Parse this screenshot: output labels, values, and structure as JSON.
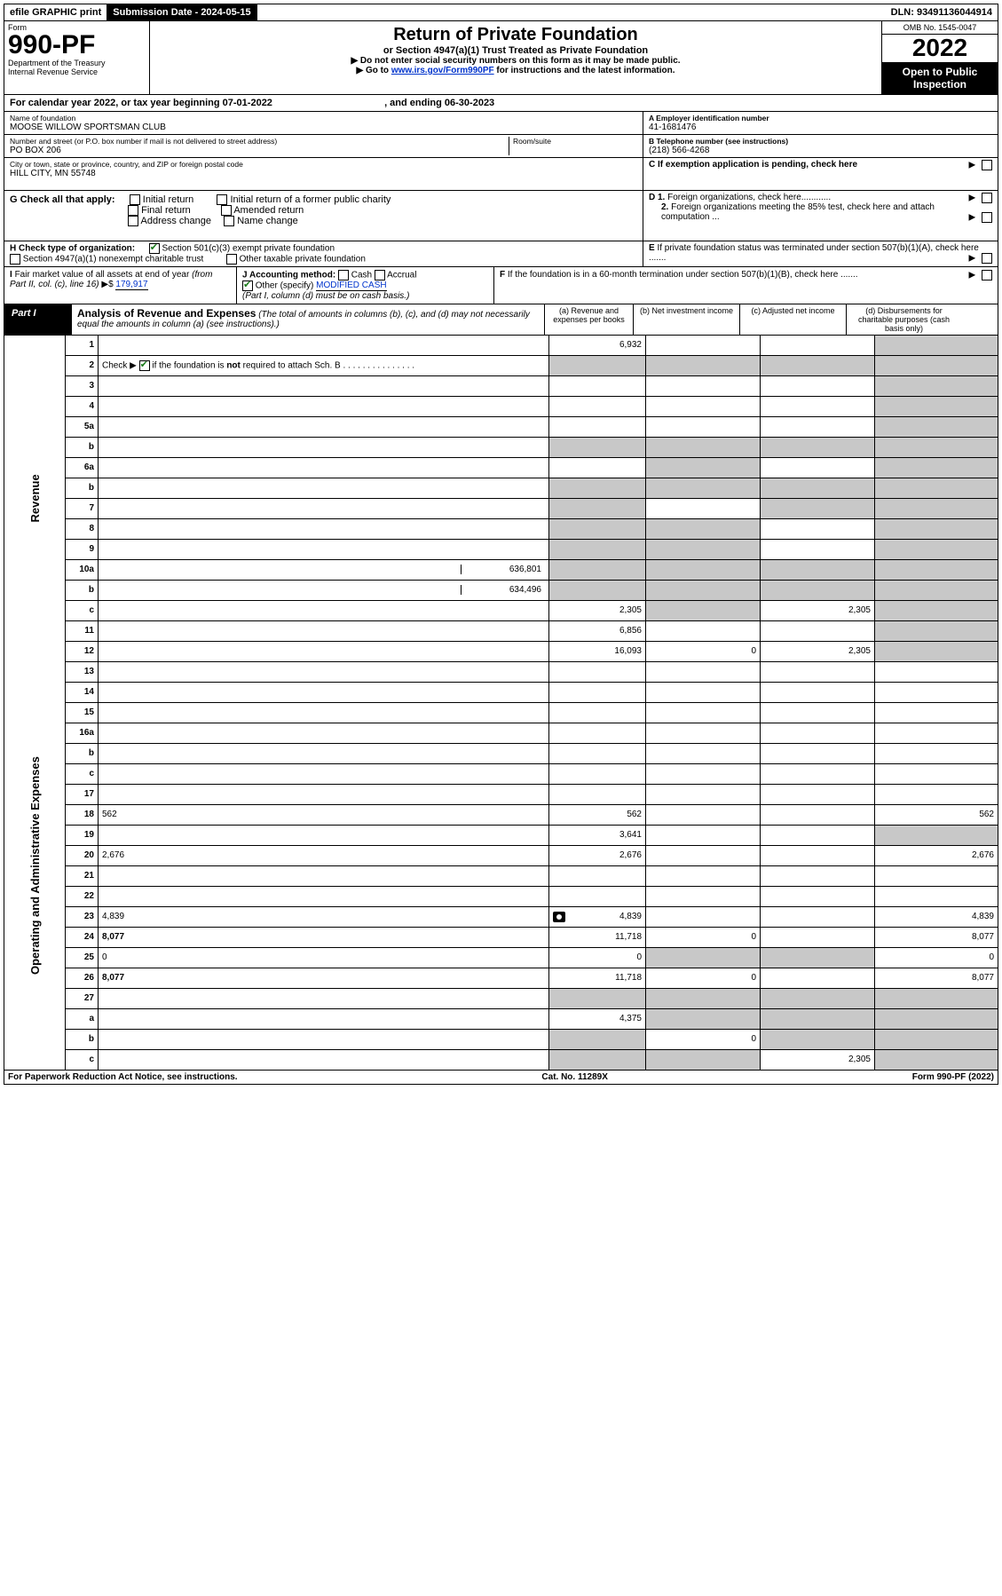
{
  "topbar": {
    "efile": "efile GRAPHIC print",
    "submission_label": "Submission Date - 2024-05-15",
    "dln": "DLN: 93491136044914"
  },
  "header": {
    "form_word": "Form",
    "form_number": "990-PF",
    "dept": "Department of the Treasury",
    "irs": "Internal Revenue Service",
    "title": "Return of Private Foundation",
    "subtitle": "or Section 4947(a)(1) Trust Treated as Private Foundation",
    "instr1": "▶ Do not enter social security numbers on this form as it may be made public.",
    "instr2_pre": "▶ Go to ",
    "instr2_link": "www.irs.gov/Form990PF",
    "instr2_post": " for instructions and the latest information.",
    "omb": "OMB No. 1545-0047",
    "year": "2022",
    "open": "Open to Public Inspection"
  },
  "cal_year": {
    "pre": "For calendar year 2022, or tax year beginning ",
    "begin": "07-01-2022",
    "mid": " , and ending ",
    "end": "06-30-2023"
  },
  "info": {
    "name_label": "Name of foundation",
    "name": "MOOSE WILLOW SPORTSMAN CLUB",
    "addr_label": "Number and street (or P.O. box number if mail is not delivered to street address)",
    "addr": "PO BOX 206",
    "room_label": "Room/suite",
    "room": "",
    "city_label": "City or town, state or province, country, and ZIP or foreign postal code",
    "city": "HILL CITY, MN  55748",
    "a_label": "A Employer identification number",
    "a_val": "41-1681476",
    "b_label": "B Telephone number (see instructions)",
    "b_val": "(218) 566-4268",
    "c_label": "C If exemption application is pending, check here",
    "d1": "D 1. Foreign organizations, check here............",
    "d2": "2. Foreign organizations meeting the 85% test, check here and attach computation ...",
    "e": "E  If private foundation status was terminated under section 507(b)(1)(A), check here .......",
    "f": "F  If the foundation is in a 60-month termination under section 507(b)(1)(B), check here .......",
    "g_label": "G Check all that apply:",
    "g_opts": [
      "Initial return",
      "Final return",
      "Address change",
      "Initial return of a former public charity",
      "Amended return",
      "Name change"
    ],
    "h_label": "H Check type of organization:",
    "h_opt1": "Section 501(c)(3) exempt private foundation",
    "h_opt2": "Section 4947(a)(1) nonexempt charitable trust",
    "h_opt3": "Other taxable private foundation",
    "i_label": "I Fair market value of all assets at end of year (from Part II, col. (c), line 16)",
    "i_val": "179,917",
    "j_label": "J Accounting method:",
    "j_cash": "Cash",
    "j_accrual": "Accrual",
    "j_other_label": "Other (specify)",
    "j_other_val": "MODIFIED CASH",
    "j_note": "(Part I, column (d) must be on cash basis.)"
  },
  "part1": {
    "label": "Part I",
    "title": "Analysis of Revenue and Expenses",
    "subtitle": " (The total of amounts in columns (b), (c), and (d) may not necessarily equal the amounts in column (a) (see instructions).)",
    "col_a": "(a) Revenue and expenses per books",
    "col_b": "(b) Net investment income",
    "col_c": "(c) Adjusted net income",
    "col_d": "(d) Disbursements for charitable purposes (cash basis only)"
  },
  "sides": {
    "revenue": "Revenue",
    "expenses": "Operating and Administrative Expenses"
  },
  "rows": [
    {
      "n": "1",
      "d": "",
      "a": "6,932",
      "b": "",
      "c": "",
      "d_grey": true
    },
    {
      "n": "2",
      "d": "",
      "a": "",
      "b": "",
      "c": "",
      "a_grey": true,
      "b_grey": true,
      "c_grey": true,
      "d_grey": true,
      "check": true
    },
    {
      "n": "3",
      "d": "",
      "a": "",
      "b": "",
      "c": "",
      "d_grey": true
    },
    {
      "n": "4",
      "d": "",
      "a": "",
      "b": "",
      "c": "",
      "d_grey": true
    },
    {
      "n": "5a",
      "d": "",
      "a": "",
      "b": "",
      "c": "",
      "d_grey": true
    },
    {
      "n": "b",
      "d": "",
      "sub": true,
      "subval": "",
      "a": "",
      "b": "",
      "c": "",
      "a_grey": true,
      "b_grey": true,
      "c_grey": true,
      "d_grey": true
    },
    {
      "n": "6a",
      "d": "",
      "a": "",
      "b": "",
      "c": "",
      "b_grey": true,
      "d_grey": true
    },
    {
      "n": "b",
      "d": "",
      "sub": true,
      "subval": "",
      "a": "",
      "b": "",
      "c": "",
      "a_grey": true,
      "b_grey": true,
      "c_grey": true,
      "d_grey": true
    },
    {
      "n": "7",
      "d": "",
      "a": "",
      "b": "",
      "c": "",
      "a_grey": true,
      "c_grey": true,
      "d_grey": true
    },
    {
      "n": "8",
      "d": "",
      "a": "",
      "b": "",
      "c": "",
      "a_grey": true,
      "b_grey": true,
      "d_grey": true
    },
    {
      "n": "9",
      "d": "",
      "a": "",
      "b": "",
      "c": "",
      "a_grey": true,
      "b_grey": true,
      "d_grey": true
    },
    {
      "n": "10a",
      "d": "",
      "sub": true,
      "subval": "636,801",
      "a": "",
      "b": "",
      "c": "",
      "a_grey": true,
      "b_grey": true,
      "c_grey": true,
      "d_grey": true
    },
    {
      "n": "b",
      "d": "",
      "sub": true,
      "subval": "634,496",
      "a": "",
      "b": "",
      "c": "",
      "a_grey": true,
      "b_grey": true,
      "c_grey": true,
      "d_grey": true
    },
    {
      "n": "c",
      "d": "",
      "a": "2,305",
      "b": "",
      "c": "2,305",
      "b_grey": true,
      "d_grey": true
    },
    {
      "n": "11",
      "d": "",
      "a": "6,856",
      "b": "",
      "c": "",
      "d_grey": true
    },
    {
      "n": "12",
      "d": "",
      "a": "16,093",
      "b": "0",
      "c": "2,305",
      "bold": true,
      "d_grey": true
    },
    {
      "n": "13",
      "d": "",
      "a": "",
      "b": "",
      "c": ""
    },
    {
      "n": "14",
      "d": "",
      "a": "",
      "b": "",
      "c": ""
    },
    {
      "n": "15",
      "d": "",
      "a": "",
      "b": "",
      "c": ""
    },
    {
      "n": "16a",
      "d": "",
      "a": "",
      "b": "",
      "c": ""
    },
    {
      "n": "b",
      "d": "",
      "a": "",
      "b": "",
      "c": ""
    },
    {
      "n": "c",
      "d": "",
      "a": "",
      "b": "",
      "c": ""
    },
    {
      "n": "17",
      "d": "",
      "a": "",
      "b": "",
      "c": ""
    },
    {
      "n": "18",
      "d": "562",
      "a": "562",
      "b": "",
      "c": ""
    },
    {
      "n": "19",
      "d": "",
      "a": "3,641",
      "b": "",
      "c": "",
      "d_grey": true
    },
    {
      "n": "20",
      "d": "2,676",
      "a": "2,676",
      "b": "",
      "c": ""
    },
    {
      "n": "21",
      "d": "",
      "a": "",
      "b": "",
      "c": ""
    },
    {
      "n": "22",
      "d": "",
      "a": "",
      "b": "",
      "c": ""
    },
    {
      "n": "23",
      "d": "4,839",
      "a": "4,839",
      "b": "",
      "c": "",
      "camera": true
    },
    {
      "n": "24",
      "d": "8,077",
      "a": "11,718",
      "b": "0",
      "c": "",
      "bold": true
    },
    {
      "n": "25",
      "d": "0",
      "a": "0",
      "b": "",
      "c": "",
      "b_grey": true,
      "c_grey": true
    },
    {
      "n": "26",
      "d": "8,077",
      "a": "11,718",
      "b": "0",
      "c": "",
      "bold": true
    },
    {
      "n": "27",
      "d": "",
      "a": "",
      "b": "",
      "c": "",
      "a_grey": true,
      "b_grey": true,
      "c_grey": true,
      "d_grey": true
    },
    {
      "n": "a",
      "d": "",
      "a": "4,375",
      "b": "",
      "c": "",
      "bold": true,
      "b_grey": true,
      "c_grey": true,
      "d_grey": true
    },
    {
      "n": "b",
      "d": "",
      "a": "",
      "b": "0",
      "c": "",
      "bold": true,
      "a_grey": true,
      "c_grey": true,
      "d_grey": true
    },
    {
      "n": "c",
      "d": "",
      "a": "",
      "b": "",
      "c": "2,305",
      "bold": true,
      "a_grey": true,
      "b_grey": true,
      "d_grey": true
    }
  ],
  "footer": {
    "left": "For Paperwork Reduction Act Notice, see instructions.",
    "mid": "Cat. No. 11289X",
    "right": "Form 990-PF (2022)"
  },
  "colors": {
    "link": "#0033cc",
    "check_green": "#1a7a1a",
    "grey_cell": "#c8c8c8"
  }
}
